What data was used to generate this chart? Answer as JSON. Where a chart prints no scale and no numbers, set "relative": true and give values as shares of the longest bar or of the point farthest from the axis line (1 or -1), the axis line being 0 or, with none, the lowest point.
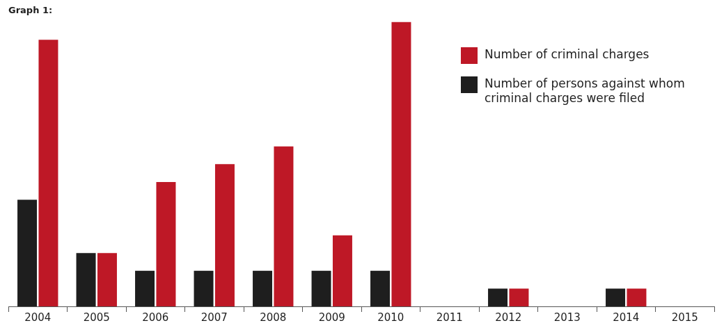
{
  "chart_data": {
    "type": "bar",
    "title": "Graph 1:",
    "relative": true,
    "categories": [
      "2004",
      "2005",
      "2006",
      "2007",
      "2008",
      "2009",
      "2010",
      "2011",
      "2012",
      "2013",
      "2014",
      "2015"
    ],
    "series": [
      {
        "name": "Number of persons against whom criminal charges were filed",
        "color": "#1e1e1e",
        "values": [
          0.375,
          0.1875,
          0.125,
          0.125,
          0.125,
          0.125,
          0.125,
          0,
          0.0625,
          0,
          0.0625,
          0
        ]
      },
      {
        "name": "Number of criminal charges",
        "color": "#be1826",
        "values": [
          0.9375,
          0.1875,
          0.4375,
          0.5,
          0.5625,
          0.25,
          1,
          0,
          0.0625,
          0,
          0.0625,
          0
        ]
      }
    ],
    "grid": false,
    "legend": "top right"
  }
}
